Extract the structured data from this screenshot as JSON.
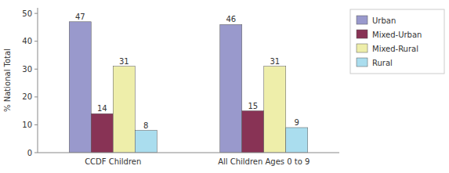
{
  "chart_data": {
    "type": "bar",
    "categories": [
      "CCDF Children",
      "All Children Ages 0 to 9"
    ],
    "series": [
      {
        "name": "Urban",
        "color": "#9999cc",
        "values": [
          47,
          46
        ]
      },
      {
        "name": "Mixed-Urban",
        "color": "#883355",
        "values": [
          14,
          15
        ]
      },
      {
        "name": "Mixed-Rural",
        "color": "#eeeeaa",
        "values": [
          31,
          31
        ]
      },
      {
        "name": "Rural",
        "color": "#aaddee",
        "values": [
          8,
          9
        ]
      }
    ],
    "ylabel": "% National Total",
    "ylim": [
      0,
      52
    ],
    "yticks": [
      0,
      10,
      20,
      30,
      40,
      50
    ],
    "data_labels": true,
    "legend": "upper right",
    "grid": false
  }
}
